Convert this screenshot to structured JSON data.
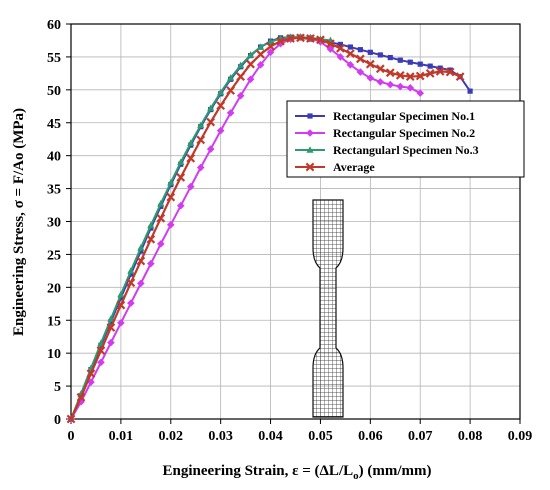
{
  "chart_data": {
    "type": "line",
    "xlabel": "Engineering Strain, ε = (ΔL/L",
    "xlabel_sub": "o",
    "xlabel_tail": ") (mm/mm)",
    "ylabel": "Engineering Stress, σ = F/Ao (MPa)",
    "xlim": [
      0,
      0.09
    ],
    "ylim": [
      0,
      60
    ],
    "xticks": [
      0,
      0.01,
      0.02,
      0.03,
      0.04,
      0.05,
      0.06,
      0.07,
      0.08,
      0.09
    ],
    "xtick_labels": [
      "0",
      "0.01",
      "0.02",
      "0.03",
      "0.04",
      "0.05",
      "0.06",
      "0.07",
      "0.08",
      "0.09"
    ],
    "yticks": [
      0,
      5,
      10,
      15,
      20,
      25,
      30,
      35,
      40,
      45,
      50,
      55,
      60
    ],
    "ytick_labels": [
      "0",
      "5",
      "10",
      "15",
      "20",
      "25",
      "30",
      "35",
      "40",
      "45",
      "50",
      "55",
      "60"
    ],
    "grid": true,
    "legend_position": "upper-right",
    "series": [
      {
        "name": "Rectangular Specimen No.1",
        "color": "#3b3bb5",
        "marker": "square",
        "x": [
          0,
          0.002,
          0.004,
          0.006,
          0.008,
          0.01,
          0.012,
          0.014,
          0.016,
          0.018,
          0.02,
          0.022,
          0.024,
          0.026,
          0.028,
          0.03,
          0.032,
          0.034,
          0.036,
          0.038,
          0.04,
          0.042,
          0.044,
          0.046,
          0.048,
          0.05,
          0.052,
          0.054,
          0.056,
          0.058,
          0.06,
          0.062,
          0.064,
          0.066,
          0.068,
          0.07,
          0.072,
          0.074,
          0.076,
          0.078,
          0.08
        ],
        "y": [
          0,
          3.5,
          7.5,
          11.2,
          14.8,
          18.4,
          22.0,
          25.5,
          29.0,
          32.3,
          35.6,
          38.7,
          41.6,
          44.4,
          47.0,
          49.4,
          51.6,
          53.5,
          55.2,
          56.5,
          57.4,
          57.9,
          58.0,
          57.9,
          57.7,
          57.5,
          57.2,
          56.9,
          56.5,
          56.1,
          55.7,
          55.3,
          54.9,
          54.5,
          54.2,
          53.9,
          53.6,
          53.3,
          53.0,
          52.0,
          49.8
        ]
      },
      {
        "name": "Rectangular Specimen No.2",
        "color": "#d23cf0",
        "marker": "diamond",
        "x": [
          0,
          0.002,
          0.004,
          0.006,
          0.008,
          0.01,
          0.012,
          0.014,
          0.016,
          0.018,
          0.02,
          0.022,
          0.024,
          0.026,
          0.028,
          0.03,
          0.032,
          0.034,
          0.036,
          0.038,
          0.04,
          0.042,
          0.044,
          0.046,
          0.048,
          0.05,
          0.052,
          0.054,
          0.056,
          0.058,
          0.06,
          0.062,
          0.064,
          0.066,
          0.068,
          0.07
        ],
        "y": [
          0,
          2.6,
          5.6,
          8.6,
          11.6,
          14.6,
          17.6,
          20.6,
          23.6,
          26.6,
          29.5,
          32.4,
          35.3,
          38.2,
          41.0,
          43.8,
          46.5,
          49.1,
          51.6,
          53.8,
          55.7,
          57.0,
          57.7,
          58.0,
          57.9,
          57.3,
          56.2,
          55.0,
          53.8,
          52.7,
          51.8,
          51.2,
          50.8,
          50.5,
          50.3,
          49.5
        ]
      },
      {
        "name": "Rectangularl Specimen No.3",
        "color": "#2e9a70",
        "marker": "triangle",
        "x": [
          0,
          0.002,
          0.004,
          0.006,
          0.008,
          0.01,
          0.012,
          0.014,
          0.016,
          0.018,
          0.02,
          0.022,
          0.024,
          0.026,
          0.028,
          0.03,
          0.032,
          0.034,
          0.036,
          0.038,
          0.04,
          0.042,
          0.044,
          0.046,
          0.048,
          0.05,
          0.052
        ],
        "y": [
          0,
          3.8,
          7.7,
          11.5,
          15.2,
          18.9,
          22.5,
          26.0,
          29.4,
          32.7,
          35.9,
          39.0,
          41.9,
          44.6,
          47.2,
          49.6,
          51.8,
          53.7,
          55.3,
          56.5,
          57.3,
          57.8,
          58.0,
          58.0,
          57.9,
          57.7,
          57.5
        ]
      },
      {
        "name": "Average",
        "color": "#c0392b",
        "marker": "x",
        "x": [
          0,
          0.002,
          0.004,
          0.006,
          0.008,
          0.01,
          0.012,
          0.014,
          0.016,
          0.018,
          0.02,
          0.022,
          0.024,
          0.026,
          0.028,
          0.03,
          0.032,
          0.034,
          0.036,
          0.038,
          0.04,
          0.042,
          0.044,
          0.046,
          0.048,
          0.05,
          0.052,
          0.054,
          0.056,
          0.058,
          0.06,
          0.062,
          0.064,
          0.066,
          0.068,
          0.07,
          0.072,
          0.074,
          0.076,
          0.078
        ],
        "y": [
          0,
          3.3,
          6.9,
          10.4,
          13.9,
          17.3,
          20.7,
          24.0,
          27.3,
          30.5,
          33.7,
          36.7,
          39.6,
          42.4,
          45.1,
          47.6,
          49.9,
          52.0,
          53.9,
          55.4,
          56.6,
          57.4,
          57.8,
          57.9,
          57.8,
          57.6,
          57.0,
          56.3,
          55.5,
          54.7,
          53.9,
          53.2,
          52.6,
          52.2,
          52.0,
          52.1,
          52.5,
          52.8,
          52.7,
          52.0
        ]
      }
    ]
  }
}
